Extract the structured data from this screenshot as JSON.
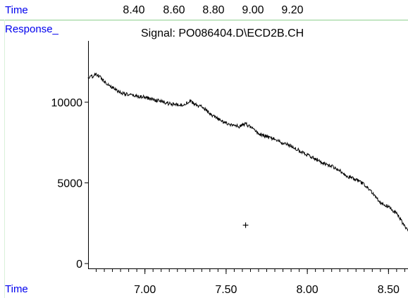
{
  "top_strip": {
    "label": "Time",
    "ticks": [
      "8.40",
      "8.60",
      "8.80",
      "9.00",
      "9.20"
    ]
  },
  "colors": {
    "label_blue": "#0000ee",
    "divider_green": "#8fd18f",
    "trace": "#000000"
  },
  "chart_data": {
    "type": "line",
    "title": "Signal: PO086404.D\\ECD2B.CH",
    "ylabel": "Response_",
    "xlabel": "Time",
    "xlim": [
      6.65,
      8.62
    ],
    "ylim": [
      -300,
      13800
    ],
    "x_ticks": [
      "7.00",
      "7.50",
      "8.00",
      "8.50"
    ],
    "y_ticks": [
      "0",
      "5000",
      "10000"
    ],
    "marker_symbol": "+",
    "marker": {
      "x": 7.62,
      "y": 2400
    },
    "series": [
      {
        "x": [
          6.65,
          6.7,
          6.72,
          6.75,
          6.8,
          6.85,
          6.9,
          7.0,
          7.1,
          7.15,
          7.22,
          7.28,
          7.32,
          7.36,
          7.4,
          7.45,
          7.5,
          7.55,
          7.58,
          7.62,
          7.66,
          7.7,
          7.75,
          7.8,
          7.85,
          7.9,
          7.95,
          8.0,
          8.05,
          8.1,
          8.15,
          8.2,
          8.25,
          8.3,
          8.35,
          8.4,
          8.45,
          8.5,
          8.55,
          8.6,
          8.62
        ],
        "values": [
          11500,
          11700,
          11600,
          11300,
          10900,
          10600,
          10450,
          10300,
          10050,
          9900,
          9800,
          10050,
          9800,
          9700,
          9250,
          8950,
          8700,
          8550,
          8500,
          8650,
          8400,
          8050,
          7850,
          7700,
          7450,
          7300,
          7000,
          6750,
          6500,
          6200,
          6050,
          5750,
          5400,
          5200,
          4900,
          4400,
          3800,
          3500,
          3100,
          2300,
          2000
        ]
      }
    ]
  }
}
